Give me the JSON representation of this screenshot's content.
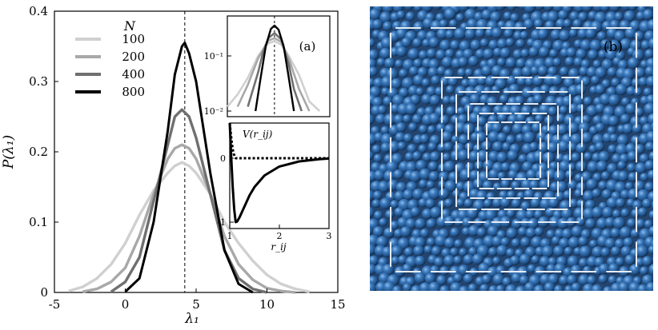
{
  "chart_data": [
    {
      "panel": "main",
      "type": "line",
      "xlabel": "λ₁",
      "ylabel": "P(λ₁)",
      "xlim": [
        -5,
        15
      ],
      "ylim": [
        0,
        0.4
      ],
      "xticks": [
        "-5",
        "0",
        "5",
        "10",
        "15"
      ],
      "yticks": [
        "0",
        "0.1",
        "0.2",
        "0.3",
        "0.4"
      ],
      "legend_title": "N",
      "legend_position": "top-left",
      "reference_line_x": 4.2,
      "series": [
        {
          "name": "100",
          "color": "#d0d0d0",
          "x": [
            -4,
            -3,
            -2,
            -1,
            0,
            1,
            2,
            3,
            3.5,
            4,
            4.5,
            5,
            6,
            7,
            8,
            9,
            10,
            11,
            12,
            13
          ],
          "y": [
            0.002,
            0.008,
            0.02,
            0.04,
            0.07,
            0.11,
            0.145,
            0.17,
            0.18,
            0.185,
            0.18,
            0.17,
            0.14,
            0.1,
            0.07,
            0.045,
            0.025,
            0.012,
            0.005,
            0.001
          ]
        },
        {
          "name": "200",
          "color": "#a8a8a8",
          "x": [
            -3,
            -2,
            -1,
            0,
            1,
            2,
            3,
            3.5,
            4,
            4.5,
            5,
            6,
            7,
            8,
            9,
            10,
            11,
            12
          ],
          "y": [
            0.001,
            0.005,
            0.015,
            0.035,
            0.08,
            0.14,
            0.19,
            0.205,
            0.21,
            0.205,
            0.19,
            0.14,
            0.08,
            0.04,
            0.018,
            0.006,
            0.002,
            0.0
          ]
        },
        {
          "name": "400",
          "color": "#707070",
          "x": [
            -1,
            0,
            1,
            2,
            3,
            3.5,
            4,
            4.5,
            5,
            6,
            7,
            8,
            9,
            10
          ],
          "y": [
            0.001,
            0.015,
            0.05,
            0.13,
            0.21,
            0.25,
            0.26,
            0.25,
            0.22,
            0.14,
            0.06,
            0.02,
            0.005,
            0.0
          ]
        },
        {
          "name": "800",
          "color": "#000000",
          "x": [
            0,
            1,
            2,
            3,
            3.5,
            4,
            4.2,
            4.5,
            5,
            6,
            7,
            8,
            9
          ],
          "y": [
            0.001,
            0.02,
            0.1,
            0.23,
            0.31,
            0.35,
            0.355,
            0.34,
            0.3,
            0.17,
            0.06,
            0.012,
            0.0
          ]
        }
      ]
    },
    {
      "panel": "inset-a",
      "type": "line",
      "label": "(a)",
      "yscale": "log",
      "yticks": [
        "10⁻¹",
        "10⁻²"
      ],
      "reference_line_x": 4.2,
      "series": [
        {
          "name": "100",
          "color": "#d0d0d0",
          "x": [
            -5,
            -3,
            -1,
            1,
            3,
            4.2,
            5.5,
            7,
            9,
            11,
            13
          ],
          "y": [
            0.012,
            0.02,
            0.04,
            0.1,
            0.17,
            0.185,
            0.16,
            0.1,
            0.045,
            0.015,
            0.01
          ]
        },
        {
          "name": "200",
          "color": "#a8a8a8",
          "x": [
            -3,
            -1,
            1,
            3,
            4.2,
            5.5,
            7,
            9,
            11
          ],
          "y": [
            0.012,
            0.03,
            0.09,
            0.19,
            0.21,
            0.18,
            0.09,
            0.025,
            0.01
          ]
        },
        {
          "name": "400",
          "color": "#707070",
          "x": [
            -1,
            1,
            2,
            3,
            4.2,
            5.5,
            7,
            8,
            9.5
          ],
          "y": [
            0.012,
            0.05,
            0.12,
            0.21,
            0.26,
            0.2,
            0.07,
            0.025,
            0.01
          ]
        },
        {
          "name": "800",
          "color": "#000000",
          "x": [
            0.5,
            1.5,
            2.5,
            3.5,
            4.2,
            5,
            6,
            7,
            8
          ],
          "y": [
            0.01,
            0.04,
            0.15,
            0.31,
            0.355,
            0.3,
            0.15,
            0.04,
            0.01
          ]
        }
      ]
    },
    {
      "panel": "inset-potential",
      "type": "line",
      "ylabel": "V(r_ij)",
      "xlabel": "r_ij",
      "xlim": [
        1,
        3
      ],
      "ylim": [
        -1.1,
        0.55
      ],
      "xticks": [
        "1",
        "2",
        "3"
      ],
      "yticks": [
        "0",
        "-1"
      ],
      "series": [
        {
          "style": "solid",
          "x": [
            1.0,
            1.03,
            1.06,
            1.09,
            1.12,
            1.15,
            1.2,
            1.3,
            1.4,
            1.5,
            1.7,
            2.0,
            2.4,
            2.8,
            3.0
          ],
          "y": [
            0.55,
            0.0,
            -0.45,
            -0.8,
            -1.0,
            -0.99,
            -0.92,
            -0.75,
            -0.58,
            -0.45,
            -0.27,
            -0.13,
            -0.05,
            -0.015,
            -0.005
          ]
        },
        {
          "style": "dotted",
          "x": [
            1.0,
            1.02,
            1.04,
            1.06,
            1.08,
            1.1,
            1.12,
            1.2,
            3.0
          ],
          "y": [
            0.55,
            0.4,
            0.25,
            0.14,
            0.07,
            0.03,
            0.0,
            0.0,
            0.0
          ]
        }
      ]
    }
  ],
  "image_panel": {
    "label": "(b)",
    "background_color": "#23446e",
    "sphere_color": "#2d6aa6",
    "highlight_color": "#6fa3d6",
    "frame_color": "#e6ecf3"
  }
}
